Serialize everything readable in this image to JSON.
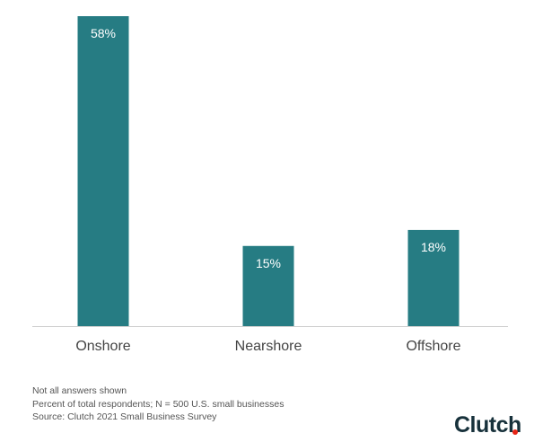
{
  "chart_data": {
    "type": "bar",
    "categories": [
      "Onshore",
      "Nearshore",
      "Offshore"
    ],
    "values": [
      58,
      15,
      18
    ],
    "value_labels": [
      "58%",
      "15%",
      "18%"
    ],
    "title": "",
    "xlabel": "",
    "ylabel": "",
    "ylim": [
      0,
      58
    ],
    "grid": false,
    "bar_color": "#267c83",
    "baseline_color": "#cfcfcf"
  },
  "notes": [
    "Not all answers shown",
    "Percent of total respondents; N = 500 U.S. small businesses",
    "Source: Clutch 2021 Small Business Survey"
  ],
  "brand": {
    "name": "Clutch",
    "dot_color": "#e62415"
  }
}
